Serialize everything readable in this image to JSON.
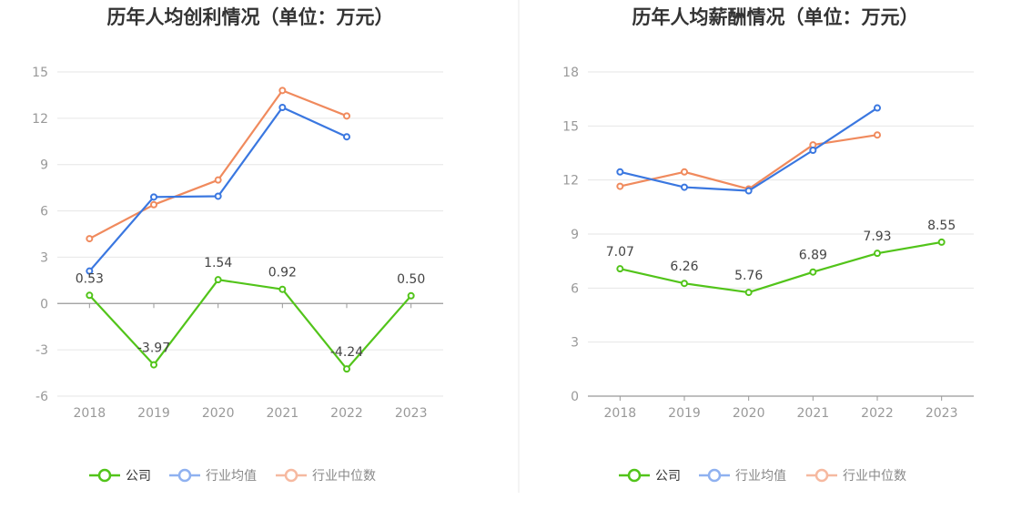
{
  "chart_data": [
    {
      "type": "line",
      "title": "历年人均创利情况（单位：万元）",
      "categories": [
        "2018",
        "2019",
        "2020",
        "2021",
        "2022",
        "2023"
      ],
      "ylim": [
        -6,
        15
      ],
      "yticks": [
        15,
        12,
        9,
        6,
        3,
        0,
        -3,
        -6
      ],
      "ytick_labels": [
        "15",
        "12",
        "9",
        "6",
        "3",
        "0",
        "-3",
        "-6"
      ],
      "grid": true,
      "legend_position": "bottom",
      "series": [
        {
          "name": "公司",
          "color": "#52c41a",
          "values": [
            0.53,
            -3.97,
            1.54,
            0.92,
            -4.24,
            0.5
          ],
          "labels": [
            "0.53",
            "-3.97",
            "1.54",
            "0.92",
            "-4.24",
            "0.50"
          ]
        },
        {
          "name": "行业均值",
          "color": "#3a77e0",
          "values": [
            2.1,
            6.9,
            6.95,
            12.7,
            10.8,
            null
          ]
        },
        {
          "name": "行业中位数",
          "color": "#f08a5d",
          "values": [
            4.2,
            6.4,
            8.0,
            13.8,
            12.15,
            null
          ]
        }
      ]
    },
    {
      "type": "line",
      "title": "历年人均薪酬情况（单位：万元）",
      "categories": [
        "2018",
        "2019",
        "2020",
        "2021",
        "2022",
        "2023"
      ],
      "ylim": [
        0,
        18
      ],
      "yticks": [
        18,
        15,
        12,
        9,
        6,
        3,
        0
      ],
      "ytick_labels": [
        "18",
        "15",
        "12",
        "9",
        "6",
        "3",
        "0"
      ],
      "grid": true,
      "legend_position": "bottom",
      "series": [
        {
          "name": "公司",
          "color": "#52c41a",
          "values": [
            7.07,
            6.26,
            5.76,
            6.89,
            7.93,
            8.55
          ],
          "labels": [
            "7.07",
            "6.26",
            "5.76",
            "6.89",
            "7.93",
            "8.55"
          ]
        },
        {
          "name": "行业均值",
          "color": "#3a77e0",
          "values": [
            12.45,
            11.6,
            11.4,
            13.65,
            16.0,
            null
          ]
        },
        {
          "name": "行业中位数",
          "color": "#f08a5d",
          "values": [
            11.65,
            12.45,
            11.5,
            13.95,
            14.5,
            null
          ]
        }
      ]
    }
  ],
  "legend_colors": {
    "公司": "#52c41a",
    "行业均值": "#8fb1f0",
    "行业中位数": "#f6b9a0"
  },
  "divider_color": "#e8e8e8"
}
